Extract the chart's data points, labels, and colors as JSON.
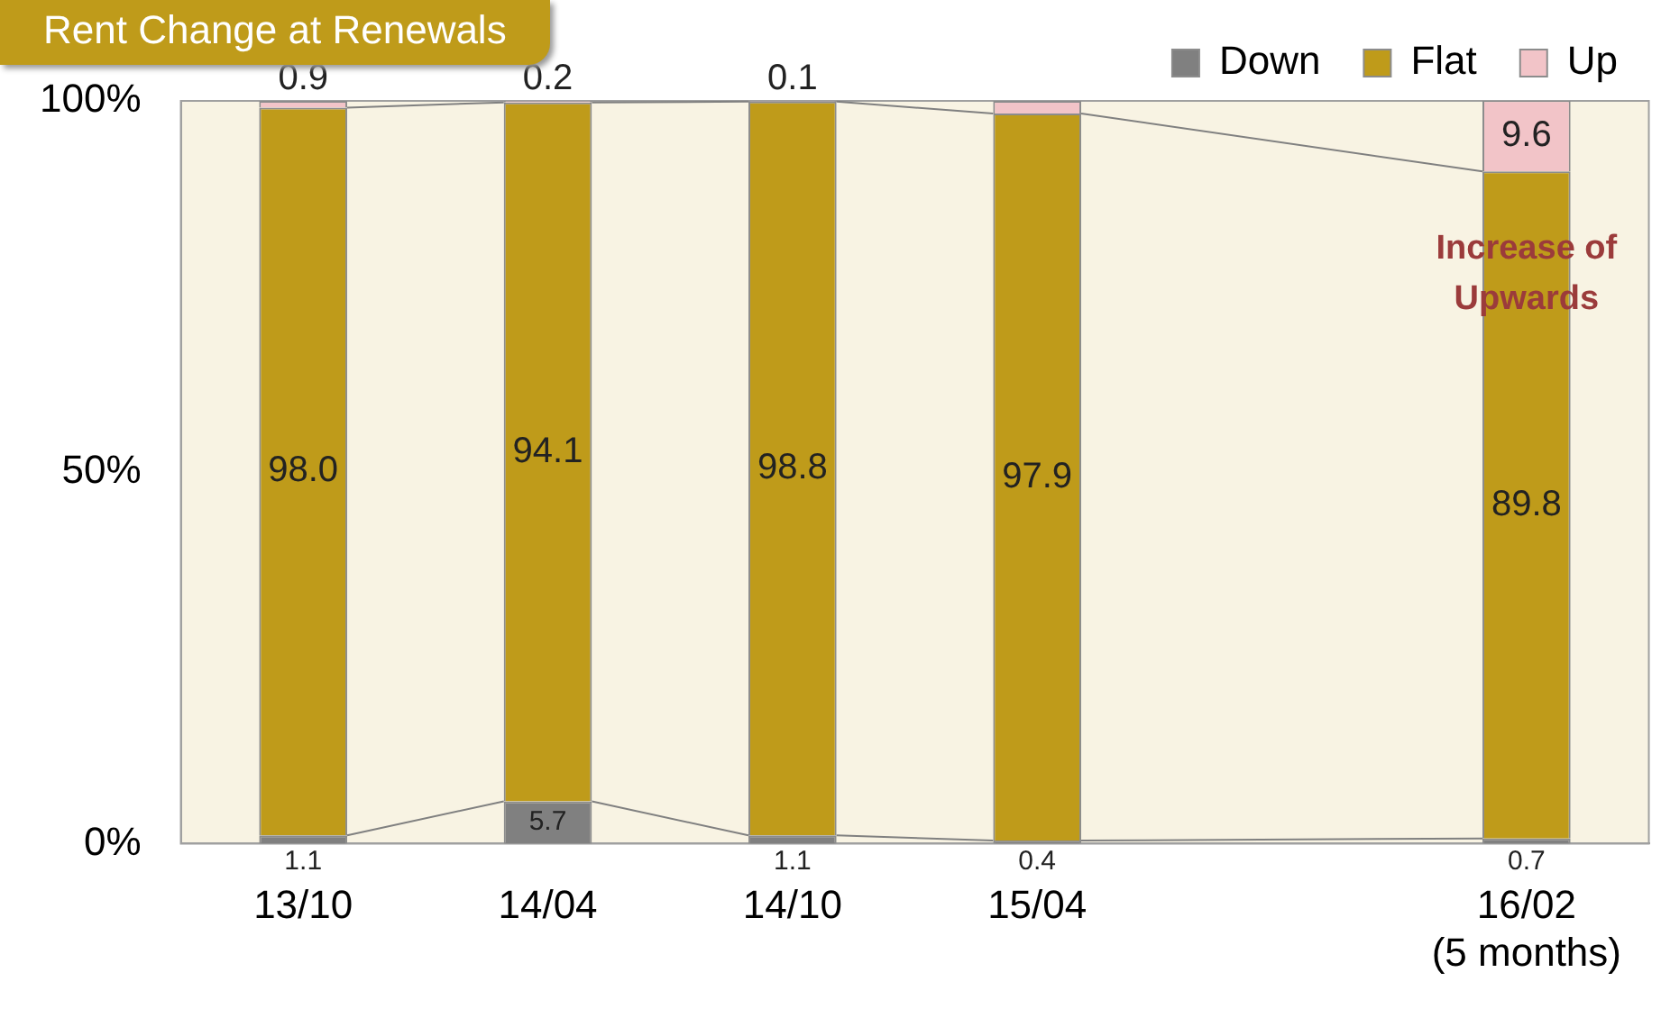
{
  "chart_data": {
    "type": "bar",
    "title": "Rent Change at Renewals",
    "stacked": true,
    "categories": [
      "13/10",
      "14/04",
      "14/10",
      "15/04",
      null,
      "16/02\n(5 months)"
    ],
    "series": [
      {
        "name": "Down",
        "color": "#808080",
        "values": [
          1.1,
          5.7,
          1.1,
          0.4,
          null,
          0.7
        ],
        "value_labels": [
          "1.1",
          "5.7",
          "1.1",
          "0.4",
          null,
          "0.7"
        ]
      },
      {
        "name": "Flat",
        "color": "#bf9b1a",
        "values": [
          98.0,
          94.1,
          98.8,
          97.9,
          null,
          89.8
        ],
        "value_labels": [
          "98.0",
          "94.1",
          "98.8",
          "97.9",
          null,
          "89.8"
        ]
      },
      {
        "name": "Up",
        "color": "#f2c4c8",
        "values": [
          0.9,
          0.2,
          0.1,
          1.7,
          null,
          9.6
        ],
        "value_labels": [
          "0.9",
          "0.2",
          "0.1",
          null,
          null,
          "9.6"
        ]
      }
    ],
    "ylim": [
      0,
      100
    ],
    "yticks": [
      {
        "value": 0,
        "label": "0%"
      },
      {
        "value": 50,
        "label": "50%"
      },
      {
        "value": 100,
        "label": "100%"
      }
    ],
    "grid": false,
    "legend": "top right",
    "annotations": [
      "Increase of\nUpwards"
    ]
  }
}
